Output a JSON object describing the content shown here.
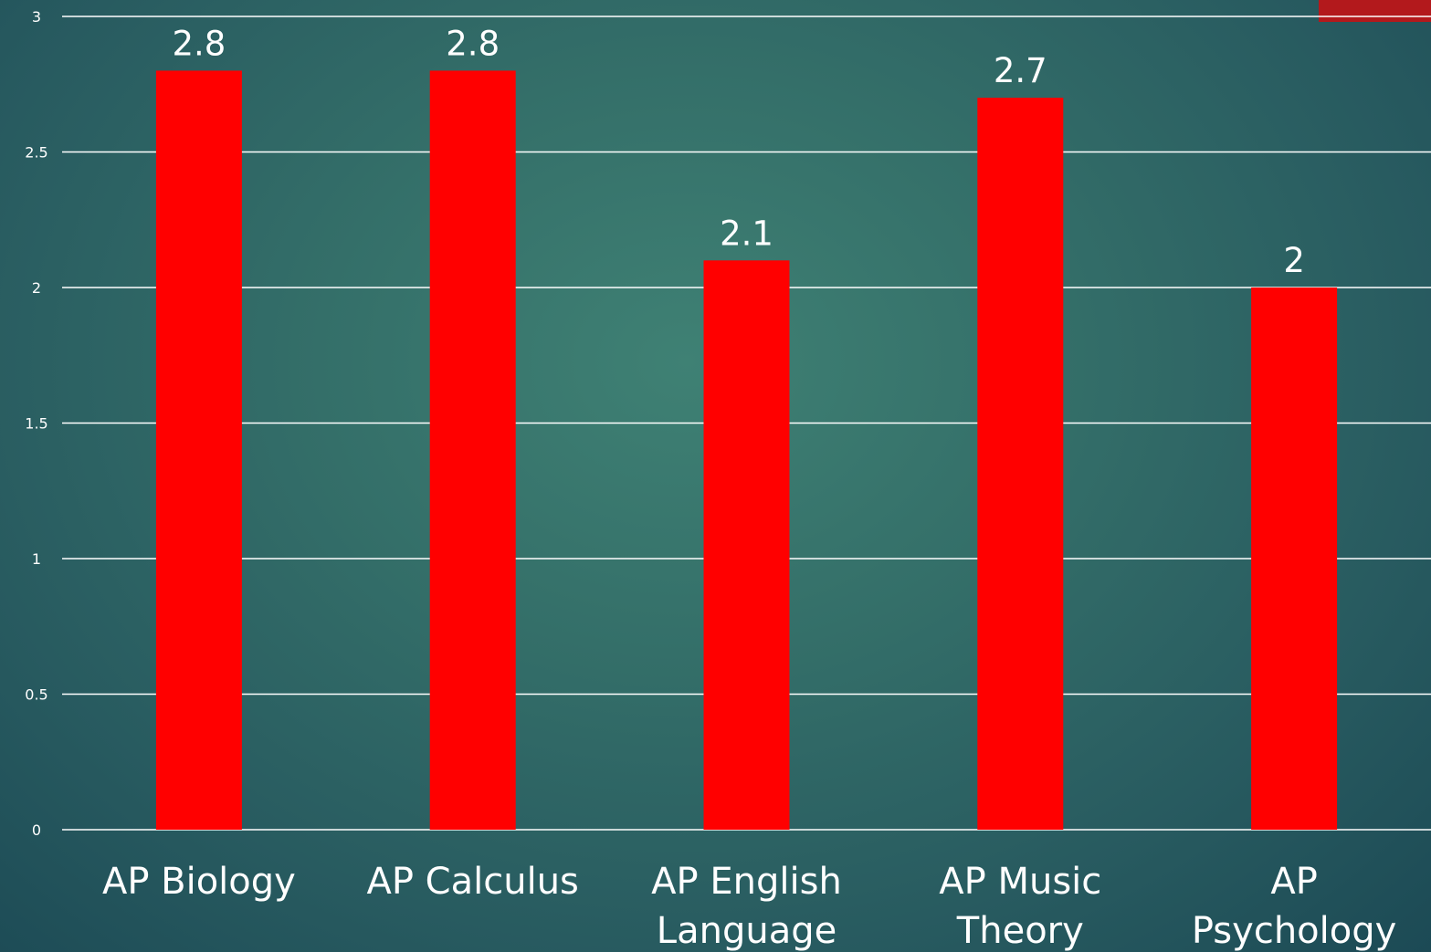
{
  "chart_data": {
    "type": "bar",
    "title": "",
    "xlabel": "",
    "ylabel": "",
    "categories": [
      [
        "AP Biology"
      ],
      [
        "AP Calculus"
      ],
      [
        "AP English",
        "Language"
      ],
      [
        "AP Music",
        "Theory"
      ],
      [
        "AP",
        "Psychology"
      ]
    ],
    "values": [
      2.8,
      2.8,
      2.1,
      2.7,
      2
    ],
    "data_labels": [
      "2.8",
      "2.8",
      "2.1",
      "2.7",
      "2"
    ],
    "ylim": [
      0,
      3
    ],
    "yticks": [
      0,
      0.5,
      1,
      1.5,
      2,
      2.5,
      3
    ],
    "ytick_labels": [
      "0",
      "0.5",
      "1",
      "1.5",
      "2",
      "2.5",
      "3"
    ],
    "grid": true,
    "legend": "none",
    "bar_color": "#ff0000"
  },
  "colors": {
    "accent": "#b3191c",
    "bar": "#ff0000",
    "text": "#ffffff"
  }
}
